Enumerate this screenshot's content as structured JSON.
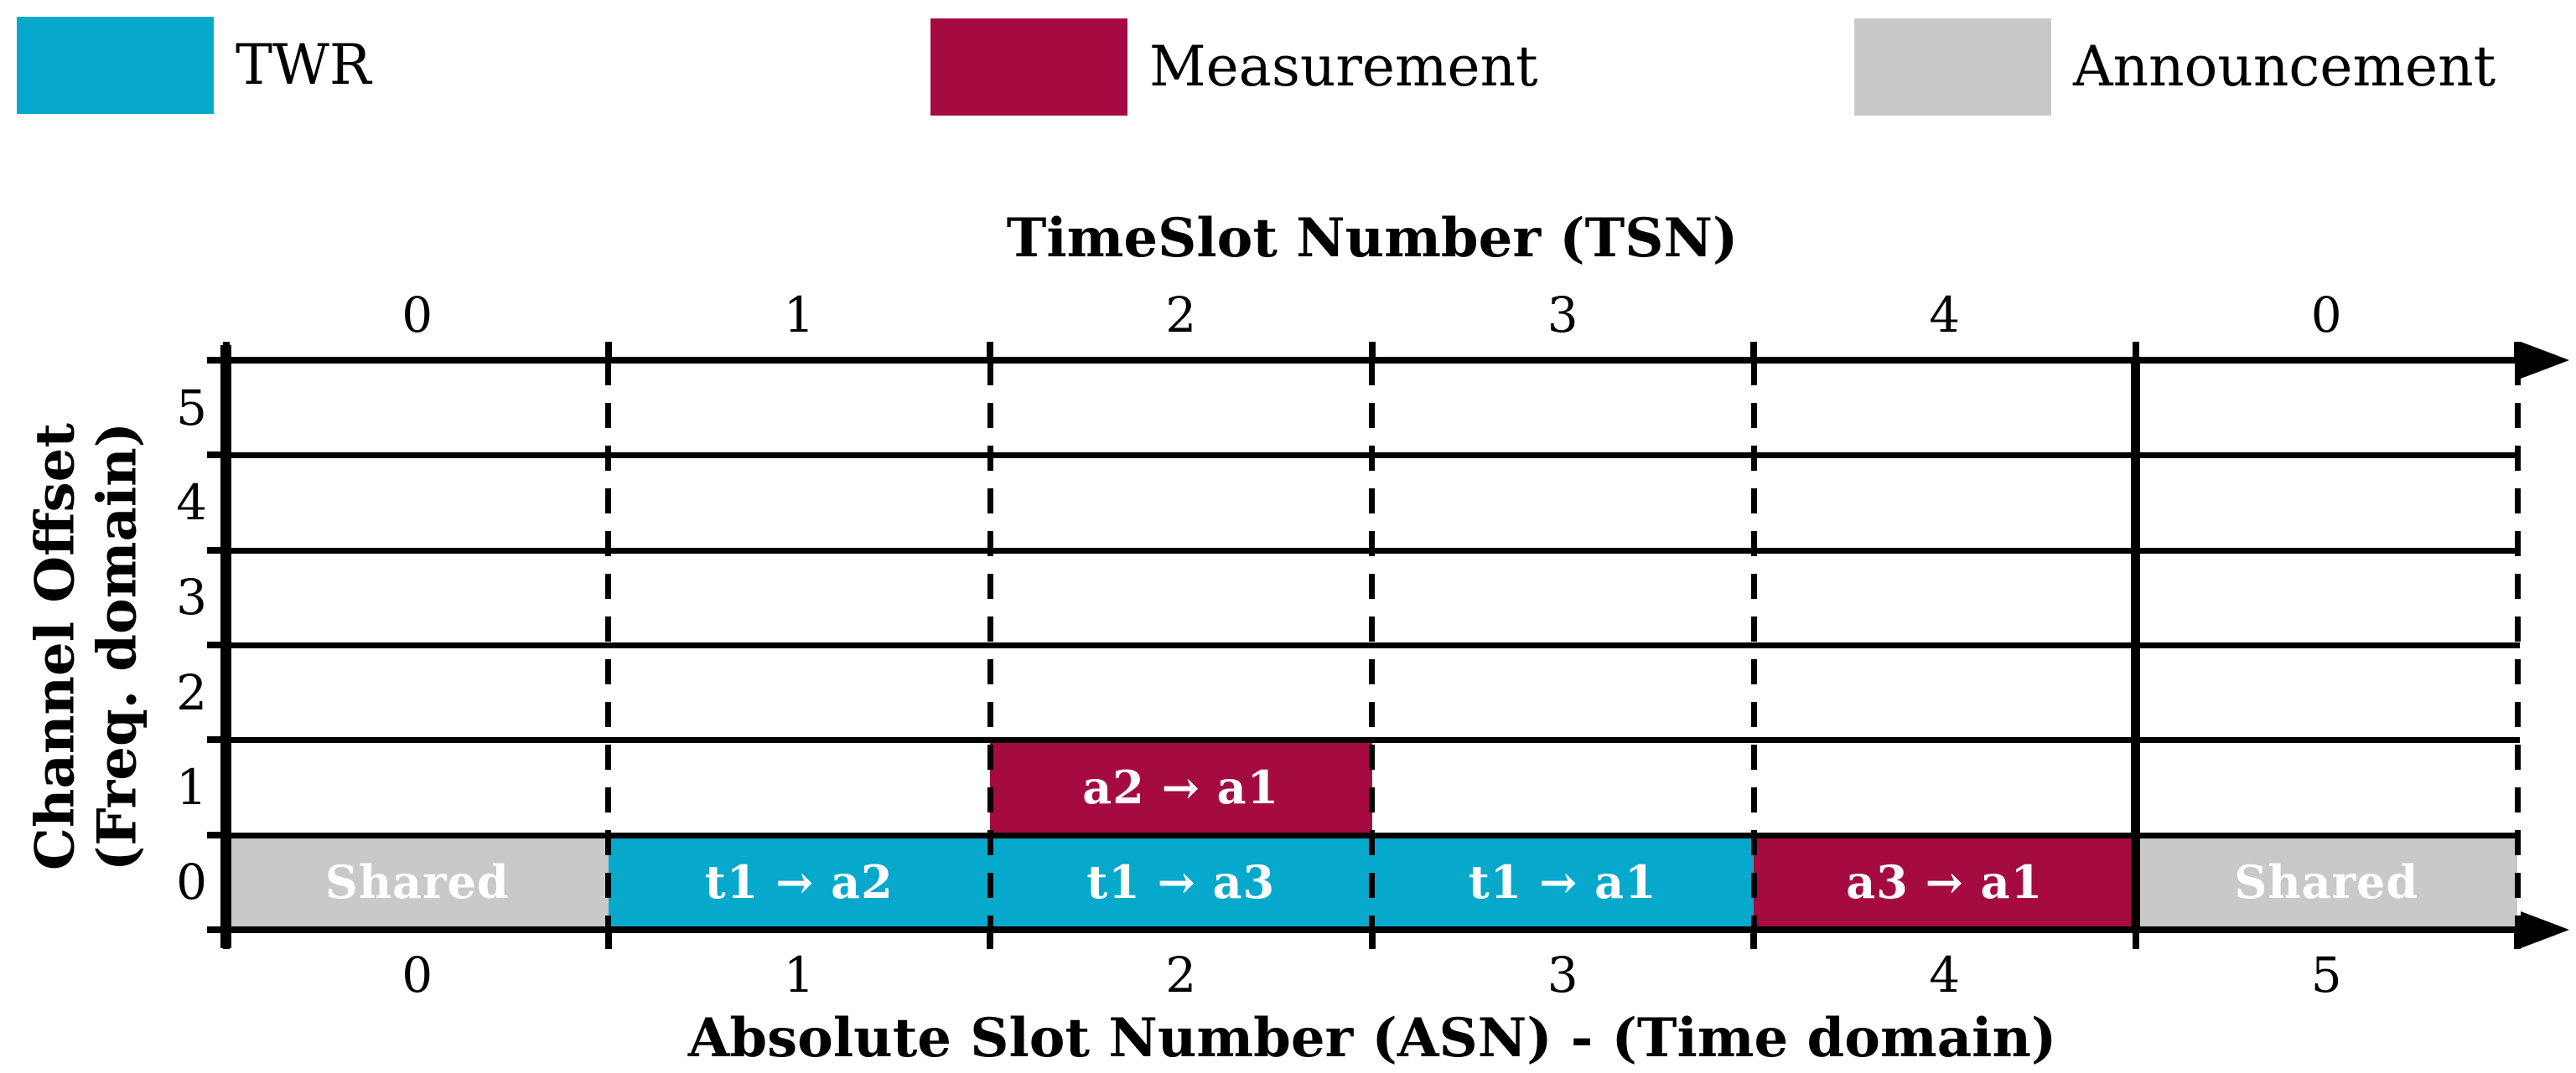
{
  "legend": {
    "items": [
      {
        "key": "TWR",
        "label": "TWR",
        "color": "#06A9CB"
      },
      {
        "key": "Measurement",
        "label": "Measurement",
        "color": "#A50B41"
      },
      {
        "key": "Announcement",
        "label": "Announcement",
        "color": "#C9C9C9"
      }
    ]
  },
  "chart_data": {
    "type": "heatmap",
    "top_axis_title": "TimeSlot Number (TSN)",
    "bottom_axis_title": "Absolute Slot Number (ASN) - (Time domain)",
    "left_axis_title_line1": "Channel Offset",
    "left_axis_title_line2": "(Freq. domain)",
    "top_tick_labels": [
      "0",
      "1",
      "2",
      "3",
      "4",
      "0"
    ],
    "bottom_tick_labels": [
      "0",
      "1",
      "2",
      "3",
      "4",
      "5"
    ],
    "left_tick_labels": [
      "5",
      "4",
      "3",
      "2",
      "1",
      "0"
    ],
    "columns": 6,
    "rows": 6,
    "slotframe_boundary_after_column": 5,
    "colors": {
      "TWR": "#06A9CB",
      "Measurement": "#A50B41",
      "Announcement": "#C9C9C9",
      "cell_text": "#ffffff",
      "axis": "#000000"
    },
    "cells": [
      {
        "asn": 0,
        "channel": 0,
        "category": "Announcement",
        "label": "Shared"
      },
      {
        "asn": 1,
        "channel": 0,
        "category": "TWR",
        "label": "t1 → a2"
      },
      {
        "asn": 2,
        "channel": 0,
        "category": "TWR",
        "label": "t1 → a3"
      },
      {
        "asn": 2,
        "channel": 1,
        "category": "Measurement",
        "label": "a2 → a1"
      },
      {
        "asn": 3,
        "channel": 0,
        "category": "TWR",
        "label": "t1 → a1"
      },
      {
        "asn": 4,
        "channel": 0,
        "category": "Measurement",
        "label": "a3 → a1"
      },
      {
        "asn": 5,
        "channel": 0,
        "category": "Announcement",
        "label": "Shared"
      }
    ]
  }
}
